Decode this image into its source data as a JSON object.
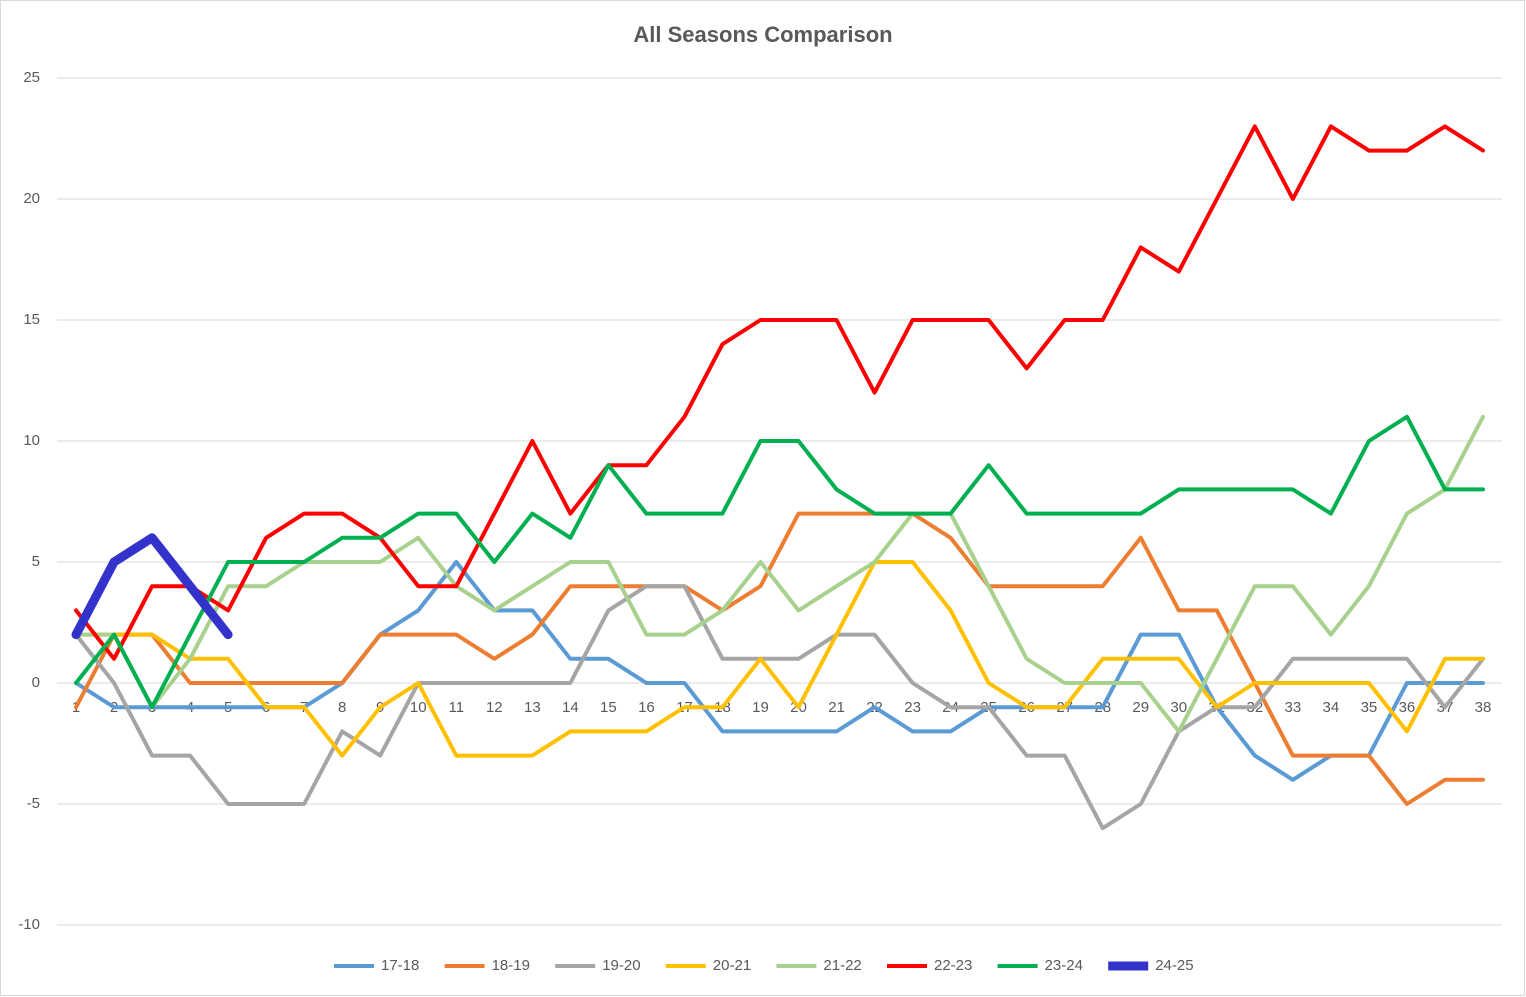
{
  "chart_data": {
    "type": "line",
    "title": "All Seasons Comparison",
    "categories": [
      "1",
      "2",
      "3",
      "4",
      "5",
      "6",
      "7",
      "8",
      "9",
      "10",
      "11",
      "12",
      "13",
      "14",
      "15",
      "16",
      "17",
      "18",
      "19",
      "20",
      "21",
      "22",
      "23",
      "24",
      "25",
      "26",
      "27",
      "28",
      "29",
      "30",
      "31",
      "32",
      "33",
      "34",
      "35",
      "36",
      "37",
      "38"
    ],
    "ylim": [
      -10,
      25
    ],
    "yticks": [
      -10,
      -5,
      0,
      5,
      10,
      15,
      20,
      25
    ],
    "grid": true,
    "legend": "bottom",
    "series": [
      {
        "name": "17-18",
        "color": "#5b9bd5",
        "line_width": 4,
        "values": [
          0,
          -1,
          -1,
          -1,
          -1,
          -1,
          -1,
          0,
          2,
          3,
          5,
          3,
          3,
          1,
          1,
          0,
          0,
          -2,
          -2,
          -2,
          -2,
          -1,
          -2,
          -2,
          -1,
          -1,
          -1,
          -1,
          2,
          2,
          -1,
          -3,
          -4,
          -3,
          -3,
          0,
          0,
          0
        ]
      },
      {
        "name": "18-19",
        "color": "#ed7d31",
        "line_width": 4,
        "values": [
          -1,
          2,
          2,
          0,
          0,
          0,
          0,
          0,
          2,
          2,
          2,
          1,
          2,
          4,
          4,
          4,
          4,
          3,
          4,
          7,
          7,
          7,
          7,
          6,
          4,
          4,
          4,
          4,
          6,
          3,
          3,
          0,
          -3,
          -3,
          -3,
          -5,
          -4,
          -4
        ]
      },
      {
        "name": "19-20",
        "color": "#a5a5a5",
        "line_width": 4,
        "values": [
          2,
          0,
          -3,
          -3,
          -5,
          -5,
          -5,
          -2,
          -3,
          0,
          0,
          0,
          0,
          0,
          3,
          4,
          4,
          1,
          1,
          1,
          2,
          2,
          0,
          -1,
          -1,
          -3,
          -3,
          -6,
          -5,
          -2,
          -1,
          -1,
          1,
          1,
          1,
          1,
          -1,
          1
        ]
      },
      {
        "name": "20-21",
        "color": "#ffc000",
        "line_width": 4,
        "values": [
          2,
          2,
          2,
          1,
          1,
          -1,
          -1,
          -3,
          -1,
          0,
          -3,
          -3,
          -3,
          -2,
          -2,
          -2,
          -1,
          -1,
          1,
          -1,
          2,
          5,
          5,
          3,
          0,
          -1,
          -1,
          1,
          1,
          1,
          -1,
          0,
          0,
          0,
          0,
          -2,
          1,
          1
        ]
      },
      {
        "name": "21-22",
        "color": "#a9d18e",
        "line_width": 4,
        "values": [
          2,
          2,
          -1,
          1,
          4,
          4,
          5,
          5,
          5,
          6,
          4,
          3,
          4,
          5,
          5,
          2,
          2,
          3,
          5,
          3,
          4,
          5,
          7,
          7,
          4,
          1,
          0,
          0,
          0,
          -2,
          1,
          4,
          4,
          2,
          4,
          7,
          8,
          11
        ]
      },
      {
        "name": "22-23",
        "color": "#ff0000",
        "line_width": 4,
        "values": [
          3,
          1,
          4,
          4,
          3,
          6,
          7,
          7,
          6,
          4,
          4,
          7,
          10,
          7,
          9,
          9,
          11,
          14,
          15,
          15,
          15,
          12,
          15,
          15,
          15,
          13,
          15,
          15,
          18,
          17,
          20,
          23,
          20,
          23,
          22,
          22,
          23,
          22
        ]
      },
      {
        "name": "23-24",
        "color": "#00b050",
        "line_width": 4,
        "values": [
          0,
          2,
          -1,
          2,
          5,
          5,
          5,
          6,
          6,
          7,
          7,
          5,
          7,
          6,
          9,
          7,
          7,
          7,
          10,
          10,
          8,
          7,
          7,
          7,
          9,
          7,
          7,
          7,
          7,
          8,
          8,
          8,
          8,
          7,
          10,
          11,
          8,
          8
        ]
      },
      {
        "name": "24-25",
        "color": "#3333cc",
        "line_width": 9,
        "values": [
          2,
          5,
          6,
          4,
          2,
          null,
          null,
          null,
          null,
          null,
          null,
          null,
          null,
          null,
          null,
          null,
          null,
          null,
          null,
          null,
          null,
          null,
          null,
          null,
          null,
          null,
          null,
          null,
          null,
          null,
          null,
          null,
          null,
          null,
          null,
          null,
          null,
          null
        ]
      }
    ]
  }
}
